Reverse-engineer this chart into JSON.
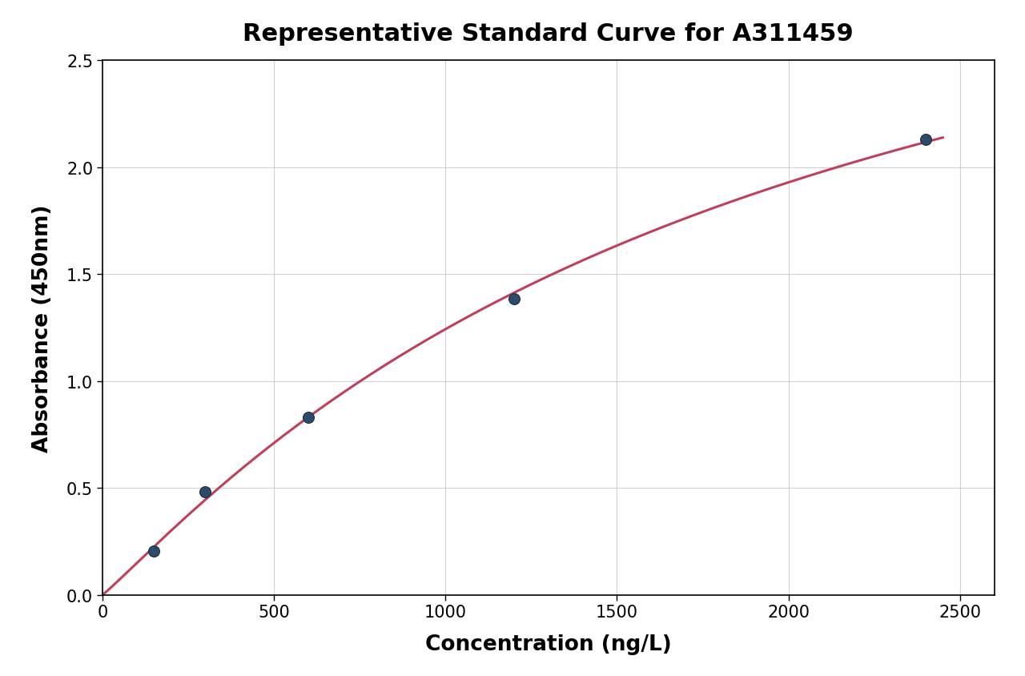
{
  "title": "Representative Standard Curve for A311459",
  "xlabel": "Concentration (ng/L)",
  "ylabel": "Absorbance (450nm)",
  "data_points_x": [
    150,
    300,
    600,
    1200,
    2400
  ],
  "data_points_y": [
    0.205,
    0.48,
    0.83,
    1.385,
    2.13
  ],
  "xlim": [
    0,
    2600
  ],
  "ylim": [
    0,
    2.5
  ],
  "xticks": [
    0,
    500,
    1000,
    1500,
    2000,
    2500
  ],
  "yticks": [
    0.0,
    0.5,
    1.0,
    1.5,
    2.0,
    2.5
  ],
  "curve_color": "#c0405a",
  "dot_color": "#2e4a6b",
  "dot_edgecolor": "#1a2e45",
  "dot_size": 100,
  "line_width": 2.2,
  "title_fontsize": 22,
  "label_fontsize": 19,
  "tick_fontsize": 15,
  "background_color": "#ffffff",
  "grid_color": "#cccccc",
  "grid_alpha": 0.9,
  "curve_x_end": 2450
}
